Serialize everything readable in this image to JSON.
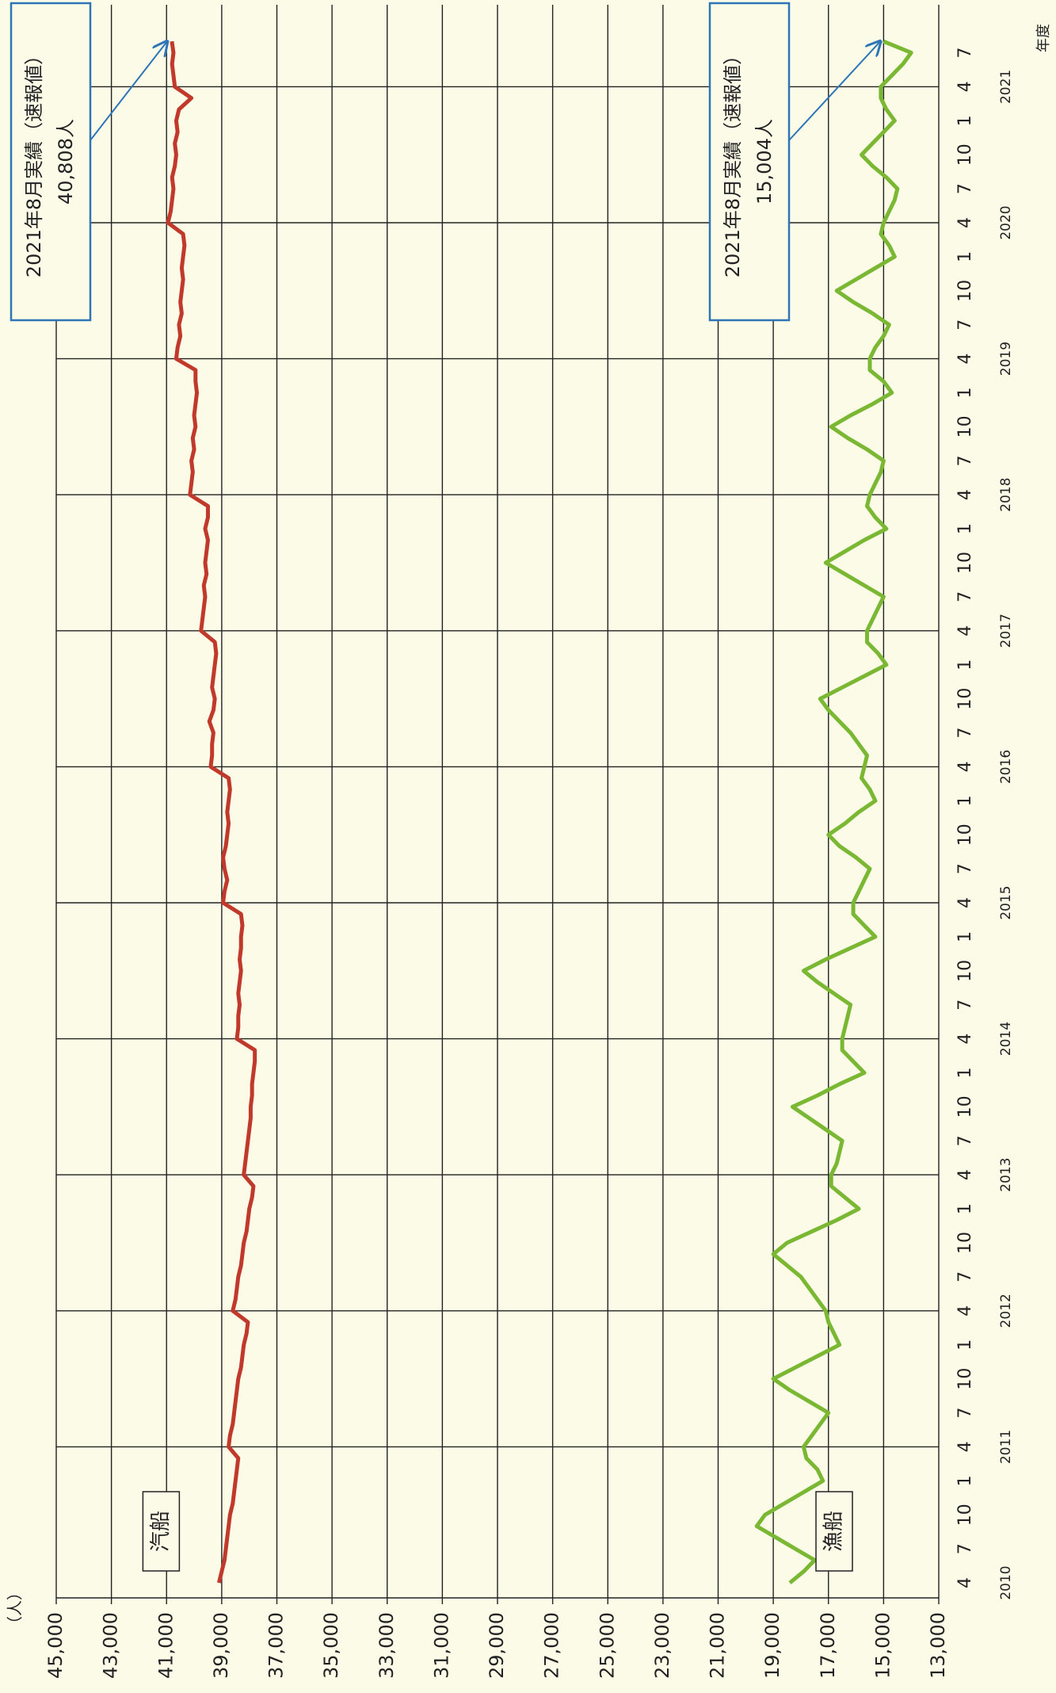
{
  "chart_data": {
    "type": "line",
    "y_unit_label": "（人）",
    "x_axis_label": "年度",
    "categories": [
      "4",
      null,
      null,
      "7",
      null,
      null,
      "10",
      null,
      null,
      "1",
      null,
      null,
      "4",
      null,
      null,
      "7",
      null,
      null,
      "10",
      null,
      null,
      "1",
      null,
      null,
      "4",
      null,
      null,
      "7",
      null,
      null,
      "10",
      null,
      null,
      "1",
      null,
      null,
      "4",
      null,
      null,
      "7",
      null,
      null,
      "10",
      null,
      null,
      "1",
      null,
      null,
      "4",
      null,
      null,
      "7",
      null,
      null,
      "10",
      null,
      null,
      "1",
      null,
      null,
      "4",
      null,
      null,
      "7",
      null,
      null,
      "10",
      null,
      null,
      "1",
      null,
      null,
      "4",
      null,
      null,
      "7",
      null,
      null,
      "10",
      null,
      null,
      "1",
      null,
      null,
      "4",
      null,
      null,
      "7",
      null,
      null,
      "10",
      null,
      null,
      "1",
      null,
      null,
      "4",
      null,
      null,
      "7",
      null,
      null,
      "10",
      null,
      null,
      "1",
      null,
      null,
      "4",
      null,
      null,
      "7",
      null,
      null,
      "10",
      null,
      null,
      "1",
      null,
      null,
      "4",
      null,
      null,
      "7",
      null,
      null,
      "10",
      null,
      null,
      "1",
      null,
      null,
      "4",
      null,
      null,
      "7",
      null
    ],
    "x_group_labels": [
      "2010",
      "2011",
      "2012",
      "2013",
      "2014",
      "2015",
      "2016",
      "2017",
      "2018",
      "2019",
      "2020",
      "2021"
    ],
    "series": [
      {
        "name": "汽船",
        "color": "#c0392b",
        "values": [
          39100,
          39000,
          38900,
          38850,
          38800,
          38750,
          38700,
          38600,
          38550,
          38500,
          38450,
          38400,
          38750,
          38700,
          38600,
          38550,
          38500,
          38450,
          38400,
          38300,
          38250,
          38200,
          38100,
          38050,
          38600,
          38500,
          38450,
          38400,
          38300,
          38250,
          38200,
          38100,
          38050,
          38000,
          37900,
          37850,
          38200,
          38150,
          38100,
          38050,
          38000,
          37950,
          37950,
          37900,
          37900,
          37850,
          37800,
          37800,
          38450,
          38400,
          38400,
          38350,
          38400,
          38350,
          38300,
          38350,
          38300,
          38300,
          38250,
          38300,
          38950,
          38900,
          38800,
          38900,
          38950,
          38850,
          38800,
          38750,
          38800,
          38750,
          38700,
          38750,
          39400,
          39350,
          39350,
          39300,
          39450,
          39300,
          39250,
          39350,
          39300,
          39250,
          39200,
          39250,
          39750,
          39700,
          39650,
          39600,
          39650,
          39550,
          39600,
          39550,
          39500,
          39600,
          39500,
          39500,
          40150,
          40100,
          40050,
          40100,
          40000,
          40050,
          39950,
          40000,
          39950,
          39900,
          39950,
          39950,
          40650,
          40600,
          40500,
          40550,
          40450,
          40500,
          40450,
          40400,
          40450,
          40400,
          40350,
          40400,
          40950,
          40850,
          40800,
          40750,
          40800,
          40700,
          40650,
          40700,
          40600,
          40650,
          40550,
          40100,
          40700,
          40750,
          40800,
          40750,
          40808
        ]
      },
      {
        "name": "漁船",
        "color": "#7ab833",
        "values": [
          18400,
          17900,
          17500,
          18200,
          18900,
          19600,
          19300,
          18600,
          17900,
          17200,
          17400,
          17800,
          17900,
          17600,
          17300,
          17000,
          17700,
          18400,
          19000,
          18200,
          17400,
          16600,
          16800,
          17000,
          17100,
          17400,
          17700,
          18000,
          18500,
          19000,
          18500,
          17600,
          16700,
          15900,
          16400,
          16900,
          16900,
          16700,
          16600,
          16500,
          17100,
          17700,
          18300,
          17400,
          16600,
          15700,
          16100,
          16500,
          16500,
          16400,
          16300,
          16200,
          16800,
          17400,
          17900,
          17100,
          16200,
          15300,
          15700,
          16100,
          16100,
          15900,
          15700,
          15500,
          16000,
          16600,
          17000,
          16400,
          15900,
          15300,
          15500,
          15800,
          15700,
          15600,
          15900,
          16200,
          16600,
          17000,
          17300,
          16500,
          15700,
          14900,
          15200,
          15600,
          15600,
          15400,
          15200,
          15000,
          15700,
          16400,
          17100,
          16400,
          15700,
          14900,
          15300,
          15600,
          15500,
          15300,
          15100,
          15000,
          15600,
          16300,
          16900,
          16200,
          15400,
          14700,
          15000,
          15500,
          15500,
          15300,
          15000,
          14800,
          15400,
          16100,
          16700,
          16000,
          15300,
          14600,
          14800,
          15100,
          15000,
          14800,
          14600,
          14500,
          14900,
          15400,
          15800,
          15400,
          15000,
          14600,
          14900,
          15100,
          15100,
          14700,
          14300,
          14000,
          15004
        ]
      }
    ],
    "ylim": [
      13000,
      45000
    ],
    "yticks": [
      {
        "value": 13000,
        "label": "13,000"
      },
      {
        "value": 15000,
        "label": "15,000"
      },
      {
        "value": 17000,
        "label": "17,000"
      },
      {
        "value": 19000,
        "label": "19,000"
      },
      {
        "value": 21000,
        "label": "21,000"
      },
      {
        "value": 23000,
        "label": "23,000"
      },
      {
        "value": 25000,
        "label": "25,000"
      },
      {
        "value": 27000,
        "label": "27,000"
      },
      {
        "value": 29000,
        "label": "29,000"
      },
      {
        "value": 31000,
        "label": "31,000"
      },
      {
        "value": 33000,
        "label": "33,000"
      },
      {
        "value": 35000,
        "label": "35,000"
      },
      {
        "value": 37000,
        "label": "37,000"
      },
      {
        "value": 39000,
        "label": "39,000"
      },
      {
        "value": 41000,
        "label": "41,000"
      },
      {
        "value": 43000,
        "label": "43,000"
      },
      {
        "value": 45000,
        "label": "45,000"
      }
    ],
    "grid": true,
    "annotations": [
      {
        "lines": [
          "2021年8月実績（速報値）",
          "40,808人"
        ]
      },
      {
        "lines": [
          "2021年8月実績（速報値）",
          "15,004人"
        ]
      }
    ]
  }
}
